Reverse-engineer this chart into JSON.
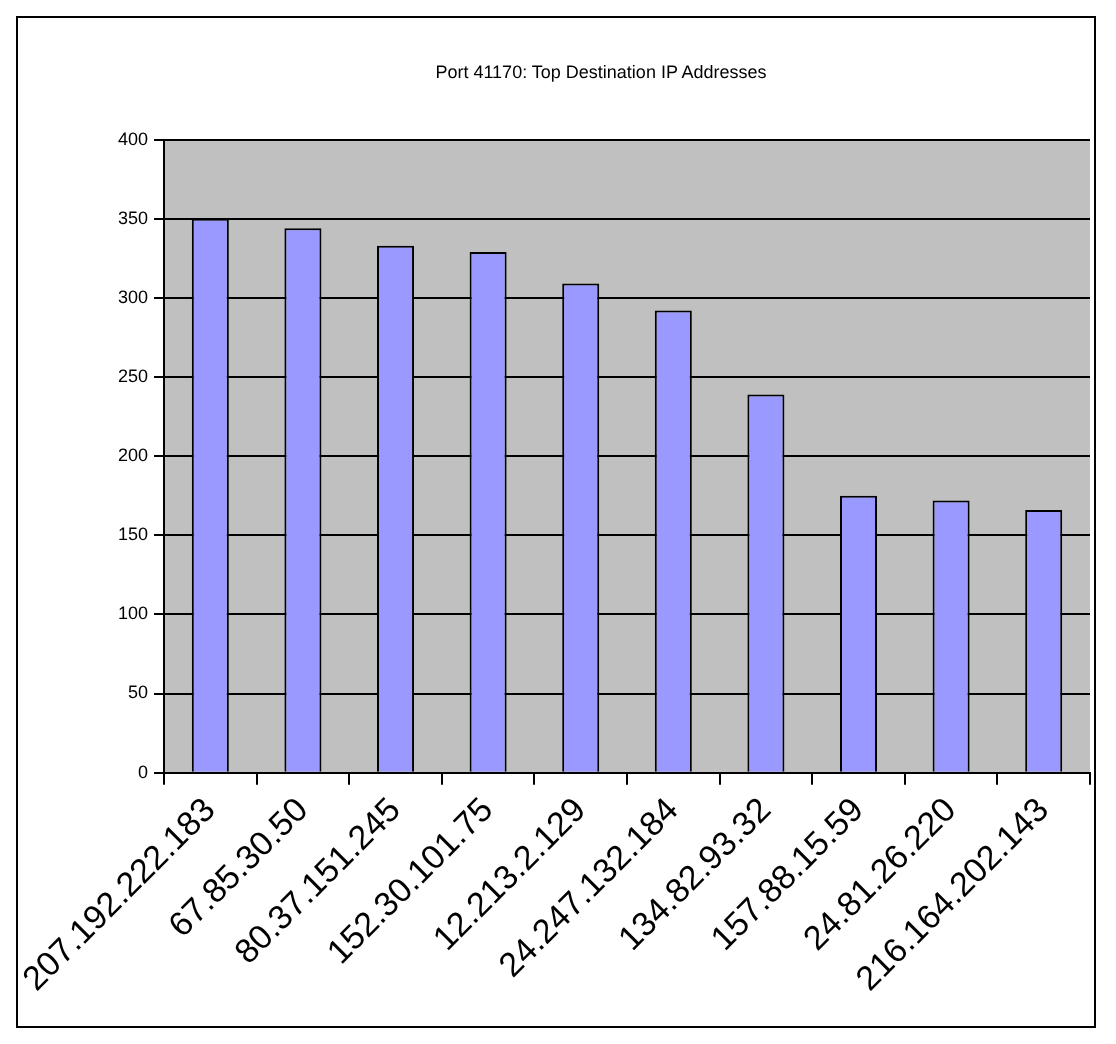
{
  "chart_data": {
    "type": "bar",
    "title": "Port 41170: Top Destination IP Addresses",
    "categories": [
      "207.192.222.183",
      "67.85.30.50",
      "80.37.151.245",
      "152.30.101.75",
      "12.213.2.129",
      "24.247.132.184",
      "134.82.93.32",
      "157.88.15.59",
      "24.81.26.220",
      "216.164.202.143"
    ],
    "values": [
      350,
      344,
      333,
      329,
      309,
      292,
      239,
      175,
      172,
      166
    ],
    "color": "#9999ff",
    "ylim": [
      0,
      400
    ],
    "yticks": [
      0,
      50,
      100,
      150,
      200,
      250,
      300,
      350,
      400
    ],
    "grid": "y",
    "legend": false
  }
}
